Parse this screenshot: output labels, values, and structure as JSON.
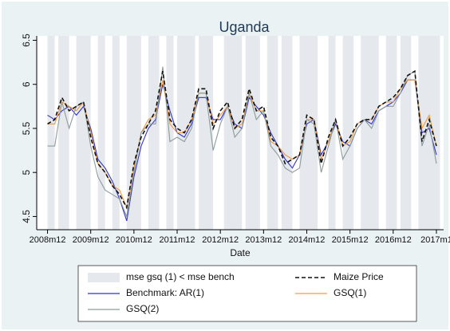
{
  "chart_data": {
    "type": "line",
    "title": "Uganda",
    "x_label": "Date",
    "x": [
      "2008m12",
      "2009m2",
      "2009m4",
      "2009m6",
      "2009m8",
      "2009m10",
      "2009m12",
      "2010m2",
      "2010m4",
      "2010m6",
      "2010m8",
      "2010m10",
      "2010m12",
      "2011m2",
      "2011m4",
      "2011m6",
      "2011m8",
      "2011m10",
      "2011m12",
      "2012m2",
      "2012m4",
      "2012m6",
      "2012m8",
      "2012m10",
      "2012m12",
      "2013m2",
      "2013m4",
      "2013m6",
      "2013m8",
      "2013m10",
      "2013m12",
      "2014m2",
      "2014m4",
      "2014m6",
      "2014m8",
      "2014m10",
      "2014m12",
      "2015m2",
      "2015m4",
      "2015m6",
      "2015m8",
      "2015m10",
      "2015m12",
      "2016m2",
      "2016m4",
      "2016m6",
      "2016m8",
      "2016m10",
      "2016m12",
      "2017m2",
      "2017m4",
      "2017m6",
      "2017m8",
      "2017m10",
      "2017m12"
    ],
    "series": [
      {
        "name": "Maize Price",
        "color": "#111111",
        "line_style": "dashed",
        "values": [
          5.55,
          5.6,
          5.85,
          5.7,
          5.75,
          5.8,
          5.4,
          5.1,
          5.0,
          4.85,
          4.75,
          4.6,
          5.1,
          5.4,
          5.55,
          5.7,
          6.15,
          5.6,
          5.5,
          5.45,
          5.6,
          5.95,
          5.95,
          5.5,
          5.7,
          5.8,
          5.5,
          5.6,
          5.95,
          5.7,
          5.75,
          5.4,
          5.3,
          5.1,
          5.15,
          5.2,
          5.65,
          5.6,
          5.1,
          5.4,
          5.6,
          5.3,
          5.4,
          5.55,
          5.6,
          5.6,
          5.75,
          5.8,
          5.85,
          5.95,
          6.1,
          6.15,
          5.35,
          5.6,
          5.3
        ]
      },
      {
        "name": "Benchmark: AR(1)",
        "color": "#3333cc",
        "line_style": "solid",
        "values": [
          5.65,
          5.6,
          5.7,
          5.75,
          5.65,
          5.75,
          5.5,
          5.15,
          5.05,
          4.9,
          4.7,
          4.45,
          4.95,
          5.3,
          5.5,
          5.6,
          6.0,
          5.7,
          5.45,
          5.4,
          5.55,
          5.85,
          5.85,
          5.6,
          5.6,
          5.75,
          5.55,
          5.5,
          5.85,
          5.75,
          5.65,
          5.45,
          5.3,
          5.15,
          5.05,
          5.2,
          5.55,
          5.6,
          5.2,
          5.35,
          5.55,
          5.35,
          5.3,
          5.5,
          5.6,
          5.55,
          5.7,
          5.75,
          5.8,
          5.9,
          6.05,
          6.05,
          5.45,
          5.5,
          5.2
        ]
      },
      {
        "name": "GSQ(1)",
        "color": "#f29a3a",
        "line_style": "solid",
        "values": [
          5.55,
          5.55,
          5.8,
          5.75,
          5.7,
          5.8,
          5.45,
          5.1,
          5.0,
          4.85,
          4.8,
          4.6,
          5.05,
          5.45,
          5.6,
          5.65,
          6.05,
          5.55,
          5.45,
          5.45,
          5.6,
          5.9,
          5.9,
          5.55,
          5.65,
          5.75,
          5.5,
          5.55,
          5.9,
          5.7,
          5.7,
          5.35,
          5.3,
          5.2,
          5.15,
          5.2,
          5.6,
          5.6,
          5.15,
          5.35,
          5.6,
          5.3,
          5.35,
          5.55,
          5.6,
          5.6,
          5.75,
          5.8,
          5.8,
          5.95,
          6.05,
          6.05,
          5.5,
          5.65,
          5.3
        ]
      },
      {
        "name": "GSQ(2)",
        "color": "#8c9c9a",
        "line_style": "solid",
        "values": [
          5.3,
          5.3,
          5.8,
          5.5,
          5.75,
          5.8,
          5.3,
          4.95,
          4.8,
          4.75,
          4.7,
          4.5,
          5.0,
          5.45,
          5.55,
          5.55,
          6.2,
          5.35,
          5.4,
          5.35,
          5.5,
          5.9,
          5.9,
          5.25,
          5.55,
          5.75,
          5.4,
          5.5,
          5.9,
          5.6,
          5.7,
          5.3,
          5.2,
          5.05,
          5.0,
          5.05,
          5.6,
          5.55,
          5.0,
          5.3,
          5.6,
          5.15,
          5.3,
          5.5,
          5.6,
          5.5,
          5.7,
          5.75,
          5.75,
          5.9,
          6.1,
          6.15,
          5.3,
          5.55,
          5.1
        ]
      }
    ],
    "shaded": {
      "name": "mse gsq (1) < mse bench",
      "color": "#e5e8ec",
      "ranges": [
        [
          "2008m12",
          "2009m1"
        ],
        [
          "2009m3",
          "2009m5"
        ],
        [
          "2009m8",
          "2009m11"
        ],
        [
          "2010m2",
          "2010m3"
        ],
        [
          "2010m6",
          "2010m7"
        ],
        [
          "2010m10",
          "2011m1"
        ],
        [
          "2011m4",
          "2011m6"
        ],
        [
          "2011m9",
          "2011m10"
        ],
        [
          "2011m12",
          "2012m4"
        ],
        [
          "2012m6",
          "2012m9"
        ],
        [
          "2013m1",
          "2013m5"
        ],
        [
          "2013m7",
          "2013m10"
        ],
        [
          "2014m1",
          "2014m3"
        ],
        [
          "2014m5",
          "2014m7"
        ],
        [
          "2014m10",
          "2015m2"
        ],
        [
          "2015m6",
          "2015m7"
        ],
        [
          "2015m10",
          "2015m12"
        ],
        [
          "2016m3",
          "2016m7"
        ],
        [
          "2016m10",
          "2016m12"
        ],
        [
          "2017m2",
          "2017m4"
        ],
        [
          "2017m7",
          "2017m12"
        ]
      ]
    },
    "xlim": [
      "2008m9",
      "2018m2"
    ],
    "xticks": [
      "2008m12",
      "2009m12",
      "2010m12",
      "2011m12",
      "2012m12",
      "2013m12",
      "2014m12",
      "2015m12",
      "2016m12",
      {
        "value": "2017m12",
        "label": "2017m1"
      }
    ],
    "ylim": [
      4.35,
      6.55
    ],
    "yticks": [
      4.5,
      5,
      5.5,
      6,
      6.5
    ]
  }
}
